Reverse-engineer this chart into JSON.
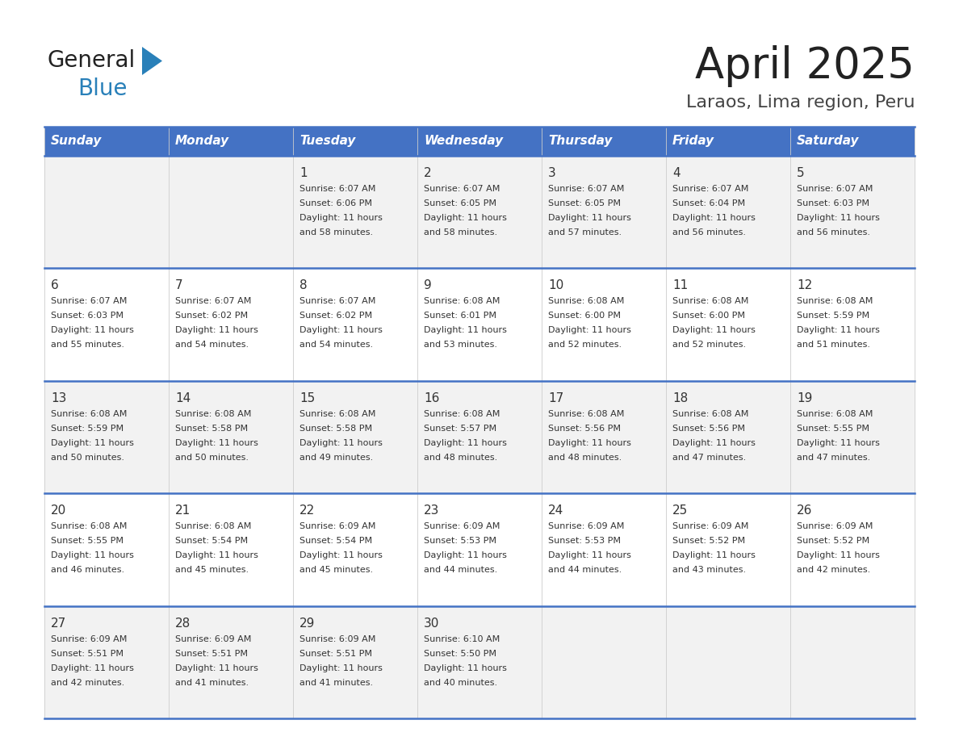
{
  "title": "April 2025",
  "subtitle": "Laraos, Lima region, Peru",
  "header_bg": "#4472C4",
  "header_text": "#FFFFFF",
  "row_bg_odd": "#F2F2F2",
  "row_bg_even": "#FFFFFF",
  "separator_color": "#4472C4",
  "day_headers": [
    "Sunday",
    "Monday",
    "Tuesday",
    "Wednesday",
    "Thursday",
    "Friday",
    "Saturday"
  ],
  "days": [
    {
      "day": 1,
      "col": 2,
      "row": 0,
      "sunrise": "6:07 AM",
      "sunset": "6:06 PM",
      "daylight": "11 hours and 58 minutes."
    },
    {
      "day": 2,
      "col": 3,
      "row": 0,
      "sunrise": "6:07 AM",
      "sunset": "6:05 PM",
      "daylight": "11 hours and 58 minutes."
    },
    {
      "day": 3,
      "col": 4,
      "row": 0,
      "sunrise": "6:07 AM",
      "sunset": "6:05 PM",
      "daylight": "11 hours and 57 minutes."
    },
    {
      "day": 4,
      "col": 5,
      "row": 0,
      "sunrise": "6:07 AM",
      "sunset": "6:04 PM",
      "daylight": "11 hours and 56 minutes."
    },
    {
      "day": 5,
      "col": 6,
      "row": 0,
      "sunrise": "6:07 AM",
      "sunset": "6:03 PM",
      "daylight": "11 hours and 56 minutes."
    },
    {
      "day": 6,
      "col": 0,
      "row": 1,
      "sunrise": "6:07 AM",
      "sunset": "6:03 PM",
      "daylight": "11 hours and 55 minutes."
    },
    {
      "day": 7,
      "col": 1,
      "row": 1,
      "sunrise": "6:07 AM",
      "sunset": "6:02 PM",
      "daylight": "11 hours and 54 minutes."
    },
    {
      "day": 8,
      "col": 2,
      "row": 1,
      "sunrise": "6:07 AM",
      "sunset": "6:02 PM",
      "daylight": "11 hours and 54 minutes."
    },
    {
      "day": 9,
      "col": 3,
      "row": 1,
      "sunrise": "6:08 AM",
      "sunset": "6:01 PM",
      "daylight": "11 hours and 53 minutes."
    },
    {
      "day": 10,
      "col": 4,
      "row": 1,
      "sunrise": "6:08 AM",
      "sunset": "6:00 PM",
      "daylight": "11 hours and 52 minutes."
    },
    {
      "day": 11,
      "col": 5,
      "row": 1,
      "sunrise": "6:08 AM",
      "sunset": "6:00 PM",
      "daylight": "11 hours and 52 minutes."
    },
    {
      "day": 12,
      "col": 6,
      "row": 1,
      "sunrise": "6:08 AM",
      "sunset": "5:59 PM",
      "daylight": "11 hours and 51 minutes."
    },
    {
      "day": 13,
      "col": 0,
      "row": 2,
      "sunrise": "6:08 AM",
      "sunset": "5:59 PM",
      "daylight": "11 hours and 50 minutes."
    },
    {
      "day": 14,
      "col": 1,
      "row": 2,
      "sunrise": "6:08 AM",
      "sunset": "5:58 PM",
      "daylight": "11 hours and 50 minutes."
    },
    {
      "day": 15,
      "col": 2,
      "row": 2,
      "sunrise": "6:08 AM",
      "sunset": "5:58 PM",
      "daylight": "11 hours and 49 minutes."
    },
    {
      "day": 16,
      "col": 3,
      "row": 2,
      "sunrise": "6:08 AM",
      "sunset": "5:57 PM",
      "daylight": "11 hours and 48 minutes."
    },
    {
      "day": 17,
      "col": 4,
      "row": 2,
      "sunrise": "6:08 AM",
      "sunset": "5:56 PM",
      "daylight": "11 hours and 48 minutes."
    },
    {
      "day": 18,
      "col": 5,
      "row": 2,
      "sunrise": "6:08 AM",
      "sunset": "5:56 PM",
      "daylight": "11 hours and 47 minutes."
    },
    {
      "day": 19,
      "col": 6,
      "row": 2,
      "sunrise": "6:08 AM",
      "sunset": "5:55 PM",
      "daylight": "11 hours and 47 minutes."
    },
    {
      "day": 20,
      "col": 0,
      "row": 3,
      "sunrise": "6:08 AM",
      "sunset": "5:55 PM",
      "daylight": "11 hours and 46 minutes."
    },
    {
      "day": 21,
      "col": 1,
      "row": 3,
      "sunrise": "6:08 AM",
      "sunset": "5:54 PM",
      "daylight": "11 hours and 45 minutes."
    },
    {
      "day": 22,
      "col": 2,
      "row": 3,
      "sunrise": "6:09 AM",
      "sunset": "5:54 PM",
      "daylight": "11 hours and 45 minutes."
    },
    {
      "day": 23,
      "col": 3,
      "row": 3,
      "sunrise": "6:09 AM",
      "sunset": "5:53 PM",
      "daylight": "11 hours and 44 minutes."
    },
    {
      "day": 24,
      "col": 4,
      "row": 3,
      "sunrise": "6:09 AM",
      "sunset": "5:53 PM",
      "daylight": "11 hours and 44 minutes."
    },
    {
      "day": 25,
      "col": 5,
      "row": 3,
      "sunrise": "6:09 AM",
      "sunset": "5:52 PM",
      "daylight": "11 hours and 43 minutes."
    },
    {
      "day": 26,
      "col": 6,
      "row": 3,
      "sunrise": "6:09 AM",
      "sunset": "5:52 PM",
      "daylight": "11 hours and 42 minutes."
    },
    {
      "day": 27,
      "col": 0,
      "row": 4,
      "sunrise": "6:09 AM",
      "sunset": "5:51 PM",
      "daylight": "11 hours and 42 minutes."
    },
    {
      "day": 28,
      "col": 1,
      "row": 4,
      "sunrise": "6:09 AM",
      "sunset": "5:51 PM",
      "daylight": "11 hours and 41 minutes."
    },
    {
      "day": 29,
      "col": 2,
      "row": 4,
      "sunrise": "6:09 AM",
      "sunset": "5:51 PM",
      "daylight": "11 hours and 41 minutes."
    },
    {
      "day": 30,
      "col": 3,
      "row": 4,
      "sunrise": "6:10 AM",
      "sunset": "5:50 PM",
      "daylight": "11 hours and 40 minutes."
    }
  ],
  "logo_text1": "General",
  "logo_text2": "Blue",
  "logo_color1": "#222222",
  "logo_color2": "#2980B9",
  "logo_triangle_color": "#2980B9",
  "title_fontsize": 38,
  "subtitle_fontsize": 16,
  "header_fontsize": 11,
  "day_num_fontsize": 11,
  "cell_text_fontsize": 8
}
